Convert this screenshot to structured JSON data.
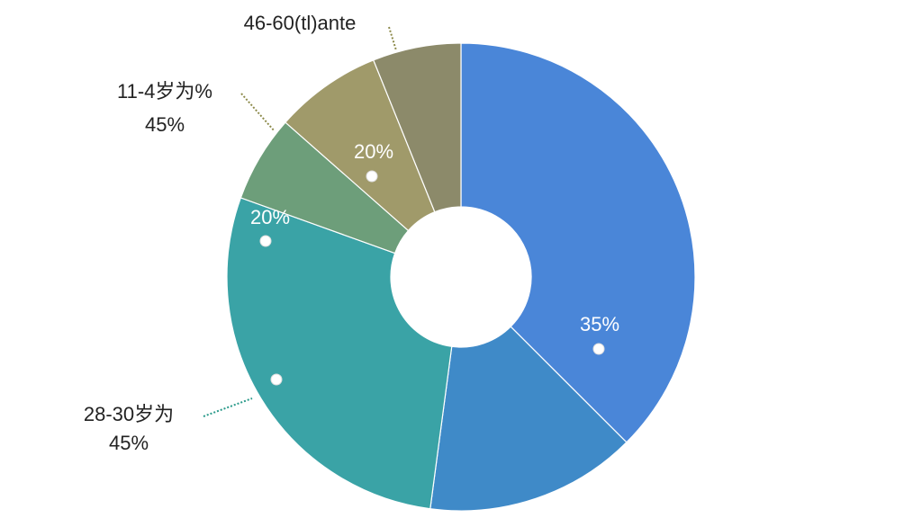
{
  "chart_data": {
    "type": "pie",
    "categories": [
      null,
      null,
      "28-30岁为",
      "11-4岁为%",
      null,
      "46-60(tl)ante"
    ],
    "values": [
      37.5,
      14.6,
      28.4,
      6,
      7.4,
      6.1
    ],
    "colors": [
      "#4a86d8",
      "#3f8ac8",
      "#3aa3a6",
      "#6d9e7a",
      "#a09a6a",
      "#8c8a6a"
    ],
    "annotations": [
      "35%",
      "20%",
      "20%",
      "45%",
      "45%"
    ]
  }
}
